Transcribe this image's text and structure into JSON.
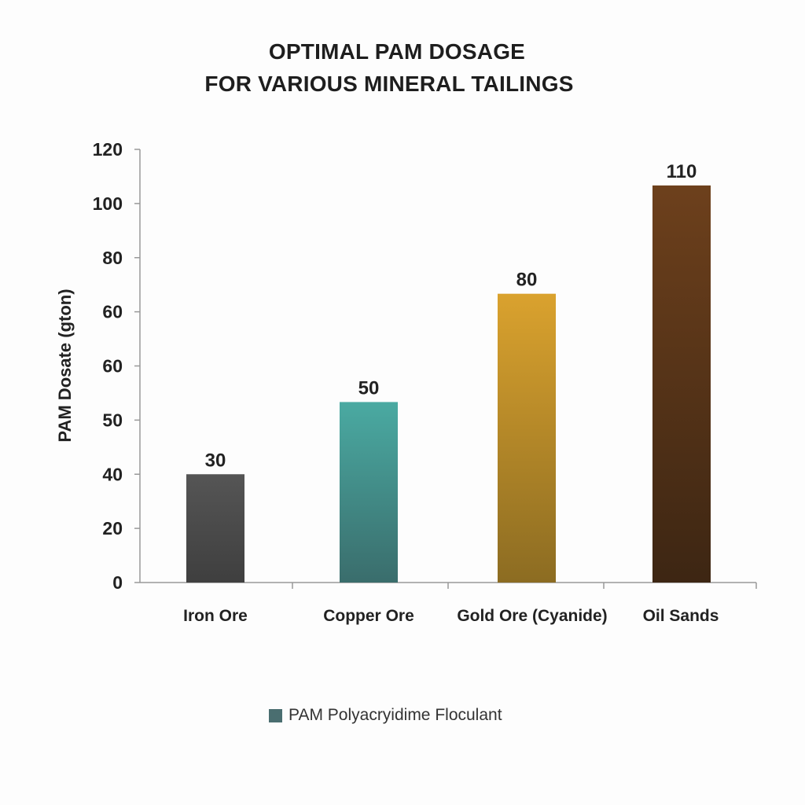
{
  "chart_data": {
    "type": "bar",
    "title_lines": [
      "OPTIMAL PAM DOSAGE",
      "FOR VARIOUS MINERAL TAILINGS"
    ],
    "xlabel": "",
    "ylabel": "PAM Dosate (gton)",
    "y_tick_labels": [
      "0",
      "20",
      "40",
      "50",
      "60",
      "60",
      "80",
      "100",
      "120"
    ],
    "ylim": [
      0,
      120
    ],
    "grid": false,
    "categories": [
      "Iron Ore",
      "Copper Ore",
      "Gold Ore (Cyanide)",
      "Oil Sands"
    ],
    "series": [
      {
        "name": "PAM Polyacryidime Floculant",
        "values": [
          30,
          50,
          80,
          110
        ],
        "color": "#4a6e70"
      }
    ],
    "bar_colors": [
      [
        "#555555",
        "#3f3f3f"
      ],
      [
        "#4aaaa2",
        "#3a6d6c"
      ],
      [
        "#daa22e",
        "#8c6c22"
      ],
      [
        "#6d401c",
        "#3d2613"
      ]
    ],
    "legend_position": "bottom"
  }
}
